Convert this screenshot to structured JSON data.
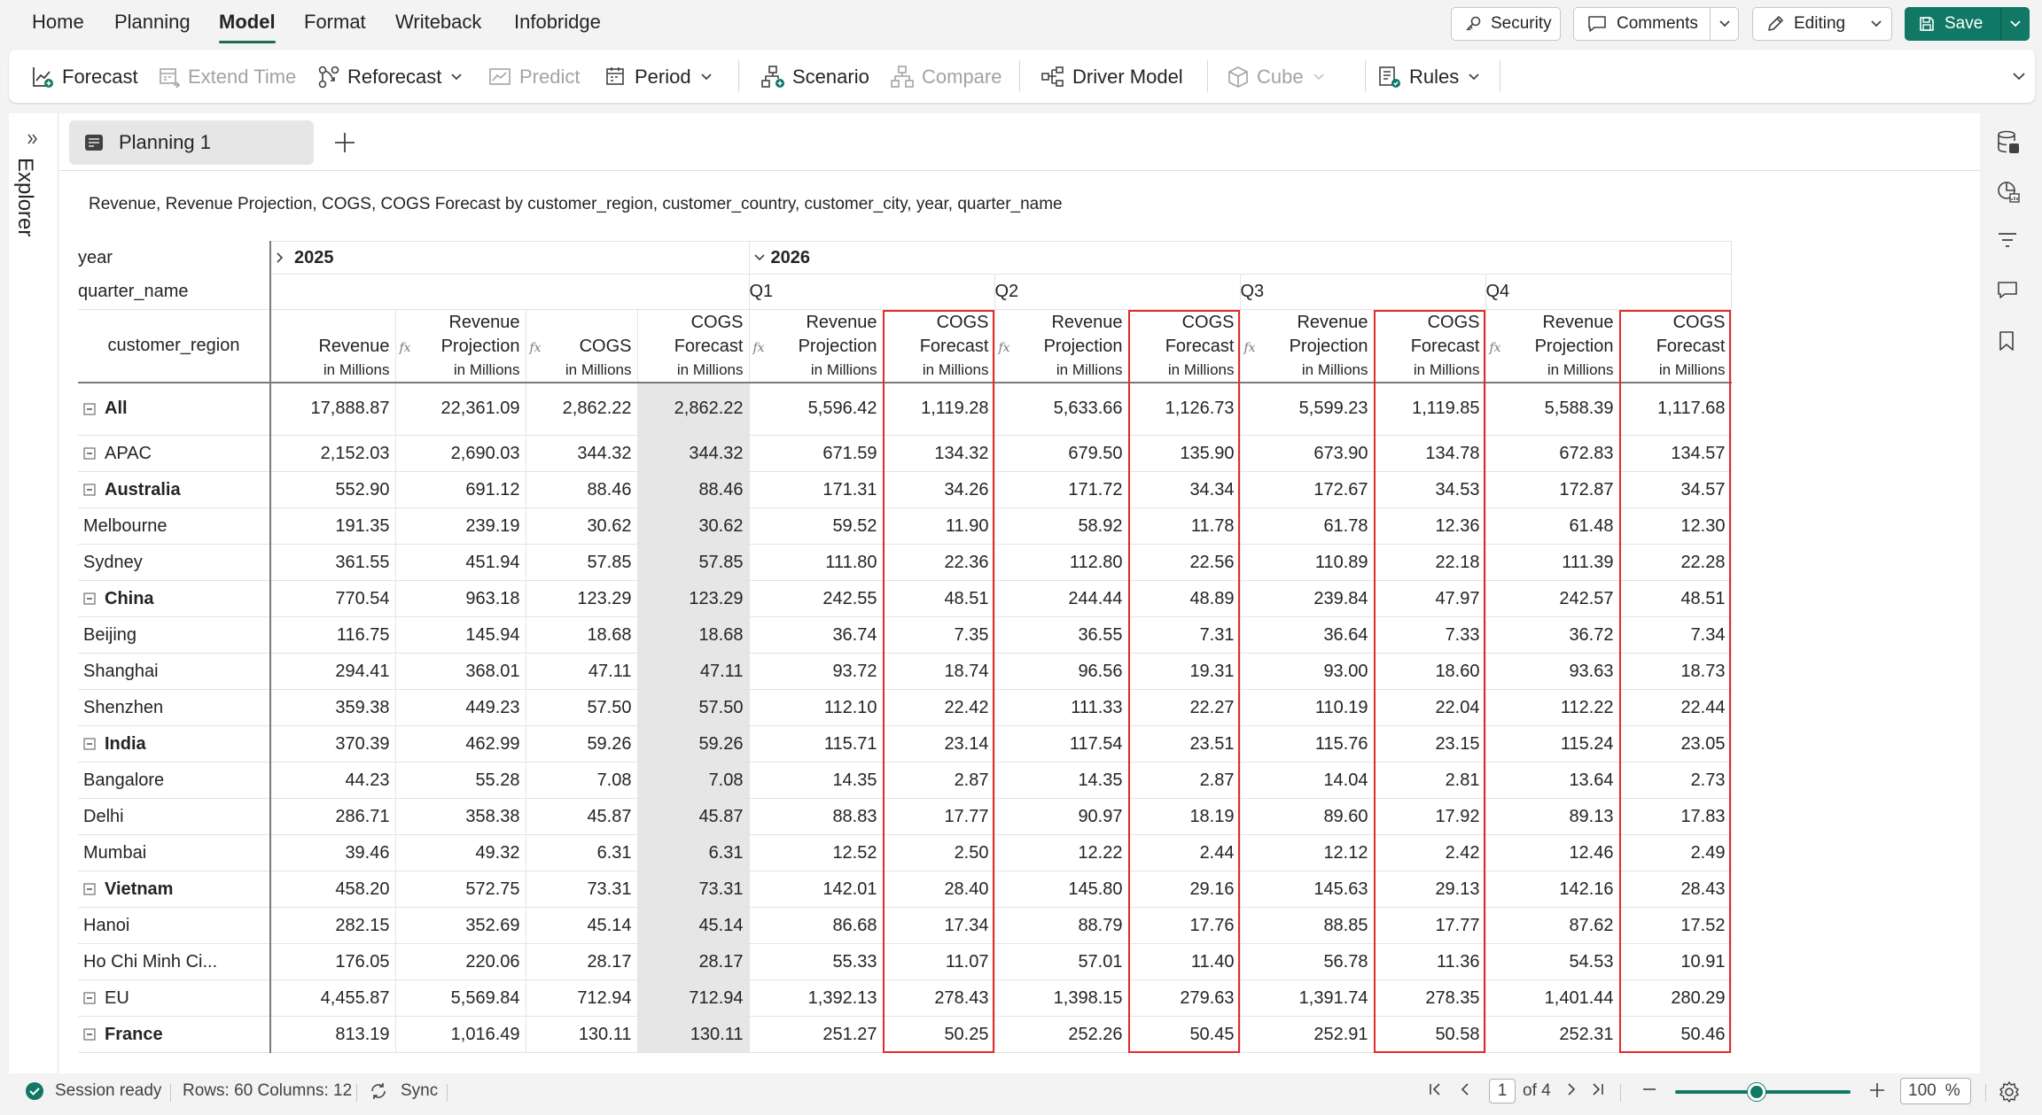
{
  "menu": {
    "items": [
      {
        "label": "Home",
        "name": "menu-home"
      },
      {
        "label": "Planning",
        "name": "menu-planning"
      },
      {
        "label": "Model",
        "name": "menu-model"
      },
      {
        "label": "Format",
        "name": "menu-format"
      },
      {
        "label": "Writeback",
        "name": "menu-writeback"
      },
      {
        "label": "Infobridge",
        "name": "menu-infobridge"
      }
    ],
    "active": "Model"
  },
  "header": {
    "security_label": "Security",
    "comments_label": "Comments",
    "editing_label": "Editing",
    "save_label": "Save"
  },
  "ribbon": {
    "forecast": "Forecast",
    "extend_time": "Extend Time",
    "reforecast": "Reforecast",
    "predict": "Predict",
    "period": "Period",
    "scenario": "Scenario",
    "compare": "Compare",
    "driver_model": "Driver Model",
    "cube": "Cube",
    "rules": "Rules"
  },
  "side": {
    "explorer_label": "Explorer"
  },
  "tabs": [
    {
      "label": "Planning 1"
    }
  ],
  "subtitle": "Revenue, Revenue Projection, COGS, COGS Forecast by customer_region, customer_country, customer_city, year, quarter_name",
  "grid": {
    "row_header_year": "year",
    "row_header_quarter": "quarter_name",
    "row_header_region": "customer_region",
    "year_2025": "2025",
    "year_2026": "2026",
    "quarters": [
      "Q1",
      "Q2",
      "Q3",
      "Q4"
    ],
    "fx_symbol": "fx",
    "unit": "in Millions",
    "measures_2025": [
      {
        "l1": "Revenue",
        "l2": "",
        "fx": false
      },
      {
        "l1": "Revenue",
        "l2": "Projection",
        "fx": true
      },
      {
        "l1": "COGS",
        "l2": "",
        "fx": true
      },
      {
        "l1": "COGS",
        "l2": "Forecast",
        "fx": false
      }
    ],
    "measures_q": [
      {
        "l1": "Revenue",
        "l2": "Projection",
        "fx": true
      },
      {
        "l1": "COGS",
        "l2": "Forecast",
        "fx": false
      }
    ],
    "rows": [
      {
        "label": "All",
        "level": 0,
        "bold": true,
        "toggle": true,
        "vals": [
          "17,888.87",
          "22,361.09",
          "2,862.22",
          "2,862.22",
          "5,596.42",
          "1,119.28",
          "5,633.66",
          "1,126.73",
          "5,599.23",
          "1,119.85",
          "5,588.39",
          "1,117.68"
        ]
      },
      {
        "label": "APAC",
        "level": 0,
        "bold": false,
        "toggle": true,
        "vals": [
          "2,152.03",
          "2,690.03",
          "344.32",
          "344.32",
          "671.59",
          "134.32",
          "679.50",
          "135.90",
          "673.90",
          "134.78",
          "672.83",
          "134.57"
        ]
      },
      {
        "label": "Australia",
        "level": 1,
        "bold": true,
        "toggle": true,
        "vals": [
          "552.90",
          "691.12",
          "88.46",
          "88.46",
          "171.31",
          "34.26",
          "171.72",
          "34.34",
          "172.67",
          "34.53",
          "172.87",
          "34.57"
        ]
      },
      {
        "label": "Melbourne",
        "level": 2,
        "bold": false,
        "toggle": false,
        "vals": [
          "191.35",
          "239.19",
          "30.62",
          "30.62",
          "59.52",
          "11.90",
          "58.92",
          "11.78",
          "61.78",
          "12.36",
          "61.48",
          "12.30"
        ]
      },
      {
        "label": "Sydney",
        "level": 2,
        "bold": false,
        "toggle": false,
        "vals": [
          "361.55",
          "451.94",
          "57.85",
          "57.85",
          "111.80",
          "22.36",
          "112.80",
          "22.56",
          "110.89",
          "22.18",
          "111.39",
          "22.28"
        ]
      },
      {
        "label": "China",
        "level": 1,
        "bold": true,
        "toggle": true,
        "vals": [
          "770.54",
          "963.18",
          "123.29",
          "123.29",
          "242.55",
          "48.51",
          "244.44",
          "48.89",
          "239.84",
          "47.97",
          "242.57",
          "48.51"
        ]
      },
      {
        "label": "Beijing",
        "level": 2,
        "bold": false,
        "toggle": false,
        "vals": [
          "116.75",
          "145.94",
          "18.68",
          "18.68",
          "36.74",
          "7.35",
          "36.55",
          "7.31",
          "36.64",
          "7.33",
          "36.72",
          "7.34"
        ]
      },
      {
        "label": "Shanghai",
        "level": 2,
        "bold": false,
        "toggle": false,
        "vals": [
          "294.41",
          "368.01",
          "47.11",
          "47.11",
          "93.72",
          "18.74",
          "96.56",
          "19.31",
          "93.00",
          "18.60",
          "93.63",
          "18.73"
        ]
      },
      {
        "label": "Shenzhen",
        "level": 2,
        "bold": false,
        "toggle": false,
        "vals": [
          "359.38",
          "449.23",
          "57.50",
          "57.50",
          "112.10",
          "22.42",
          "111.33",
          "22.27",
          "110.19",
          "22.04",
          "112.22",
          "22.44"
        ]
      },
      {
        "label": "India",
        "level": 1,
        "bold": true,
        "toggle": true,
        "vals": [
          "370.39",
          "462.99",
          "59.26",
          "59.26",
          "115.71",
          "23.14",
          "117.54",
          "23.51",
          "115.76",
          "23.15",
          "115.24",
          "23.05"
        ]
      },
      {
        "label": "Bangalore",
        "level": 2,
        "bold": false,
        "toggle": false,
        "vals": [
          "44.23",
          "55.28",
          "7.08",
          "7.08",
          "14.35",
          "2.87",
          "14.35",
          "2.87",
          "14.04",
          "2.81",
          "13.64",
          "2.73"
        ]
      },
      {
        "label": "Delhi",
        "level": 2,
        "bold": false,
        "toggle": false,
        "vals": [
          "286.71",
          "358.38",
          "45.87",
          "45.87",
          "88.83",
          "17.77",
          "90.97",
          "18.19",
          "89.60",
          "17.92",
          "89.13",
          "17.83"
        ]
      },
      {
        "label": "Mumbai",
        "level": 2,
        "bold": false,
        "toggle": false,
        "vals": [
          "39.46",
          "49.32",
          "6.31",
          "6.31",
          "12.52",
          "2.50",
          "12.22",
          "2.44",
          "12.12",
          "2.42",
          "12.46",
          "2.49"
        ]
      },
      {
        "label": "Vietnam",
        "level": 1,
        "bold": true,
        "toggle": true,
        "vals": [
          "458.20",
          "572.75",
          "73.31",
          "73.31",
          "142.01",
          "28.40",
          "145.80",
          "29.16",
          "145.63",
          "29.13",
          "142.16",
          "28.43"
        ]
      },
      {
        "label": "Hanoi",
        "level": 2,
        "bold": false,
        "toggle": false,
        "vals": [
          "282.15",
          "352.69",
          "45.14",
          "45.14",
          "86.68",
          "17.34",
          "88.79",
          "17.76",
          "88.85",
          "17.77",
          "87.62",
          "17.52"
        ]
      },
      {
        "label": "Ho Chi Minh Ci...",
        "level": 2,
        "bold": false,
        "toggle": false,
        "vals": [
          "176.05",
          "220.06",
          "28.17",
          "28.17",
          "55.33",
          "11.07",
          "57.01",
          "11.40",
          "56.78",
          "11.36",
          "54.53",
          "10.91"
        ]
      },
      {
        "label": "EU",
        "level": 0,
        "bold": false,
        "toggle": true,
        "vals": [
          "4,455.87",
          "5,569.84",
          "712.94",
          "712.94",
          "1,392.13",
          "278.43",
          "1,398.15",
          "279.63",
          "1,391.74",
          "278.35",
          "1,401.44",
          "280.29"
        ]
      },
      {
        "label": "France",
        "level": 1,
        "bold": true,
        "toggle": true,
        "vals": [
          "813.19",
          "1,016.49",
          "130.11",
          "130.11",
          "251.27",
          "50.25",
          "252.26",
          "50.45",
          "252.91",
          "50.58",
          "252.31",
          "50.46"
        ]
      }
    ]
  },
  "status": {
    "session": "Session ready",
    "rows_cols": "Rows: 60 Columns: 12",
    "sync": "Sync",
    "page_current": "1",
    "page_total": "of 4",
    "zoom_value": "100",
    "zoom_unit": "%",
    "zoom_level_percent": 100
  },
  "colors": {
    "accent": "#117865",
    "highlight": "#e32a2a",
    "shaded_column": "#e6e6e6"
  }
}
